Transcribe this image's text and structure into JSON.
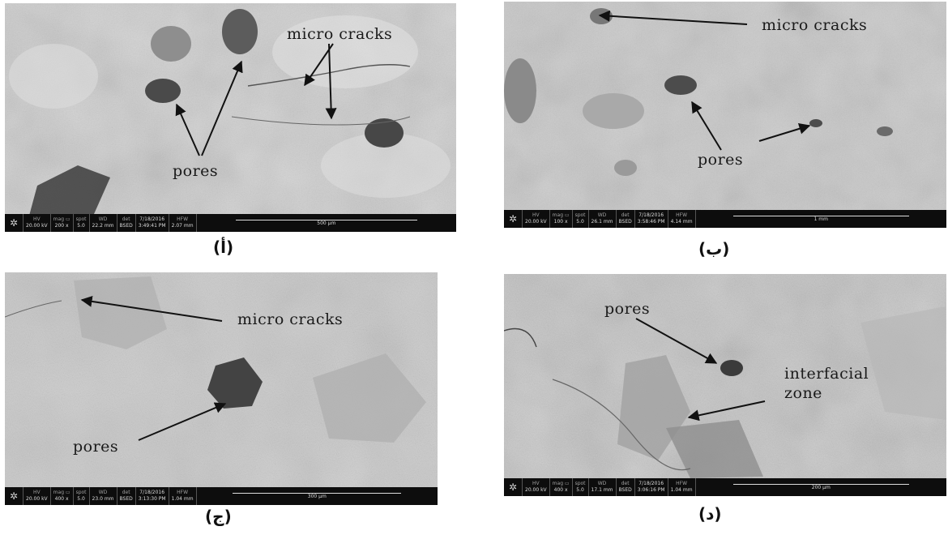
{
  "panels": {
    "a": {
      "caption": "(أ)",
      "labels": {
        "micro_cracks": "micro cracks",
        "pores": "pores"
      },
      "bar": {
        "hv": "20.00 kV",
        "mag": "200 x",
        "spot": "5.0",
        "wd": "22.2 mm",
        "det": "BSED",
        "date": "7/18/2016",
        "time": "3:49:41 PM",
        "hfw": "2.07 mm",
        "scale": "500 μm"
      }
    },
    "b": {
      "caption": "(ب)",
      "labels": {
        "micro_cracks": "micro cracks",
        "pores": "pores"
      },
      "bar": {
        "hv": "20.00 kV",
        "mag": "100 x",
        "spot": "5.0",
        "wd": "26.1 mm",
        "det": "BSED",
        "date": "7/18/2016",
        "time": "3:58:46 PM",
        "hfw": "4.14 mm",
        "scale": "1 mm"
      }
    },
    "c": {
      "caption": "(ج)",
      "labels": {
        "micro_cracks": "micro cracks",
        "pores": "pores"
      },
      "bar": {
        "hv": "20.00 kV",
        "mag": "400 x",
        "spot": "5.0",
        "wd": "23.0 mm",
        "det": "BSED",
        "date": "7/18/2016",
        "time": "3:13:30 PM",
        "hfw": "1.04 mm",
        "scale": "300 μm"
      }
    },
    "d": {
      "caption": "(د)",
      "labels": {
        "pores": "pores",
        "interfacial": "interfacial",
        "zone": "zone"
      },
      "bar": {
        "hv": "20.00 kV",
        "mag": "400 x",
        "spot": "5.0",
        "wd": "17.1 mm",
        "det": "BSED",
        "date": "7/18/2016",
        "time": "3:06:16 PM",
        "hfw": "1.04 mm",
        "scale": "200 μm"
      }
    }
  },
  "bar_keys": {
    "hv": "HV",
    "mag": "mag ▭",
    "spot": "spot",
    "wd": "WD",
    "det": "det",
    "hfw": "HFW"
  },
  "colors": {
    "background": "#ffffff",
    "data_bar": "#0d0d0d",
    "sem_surface": "#c7c7c7",
    "pore": "#3a3a3a"
  }
}
